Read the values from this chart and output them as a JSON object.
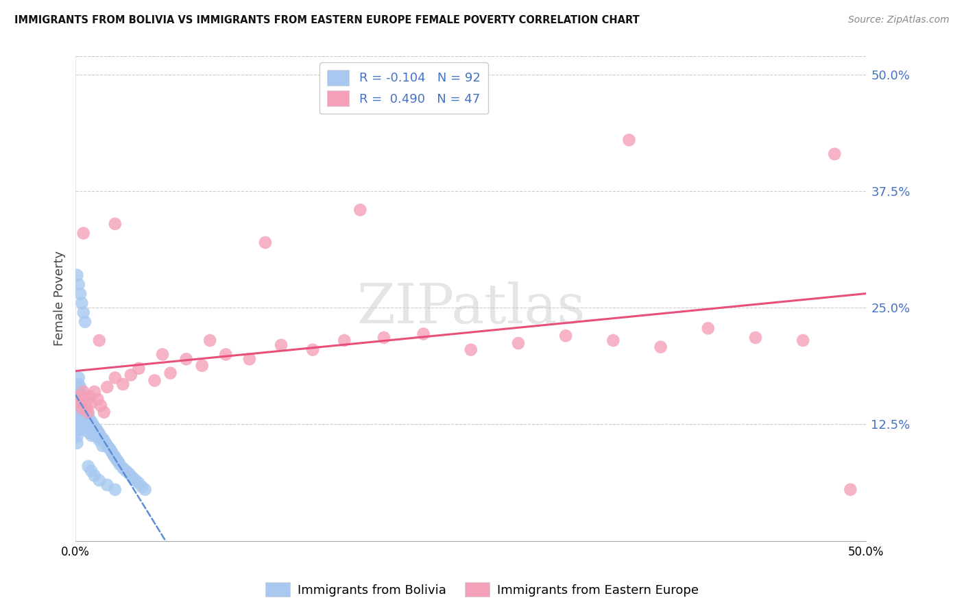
{
  "title": "IMMIGRANTS FROM BOLIVIA VS IMMIGRANTS FROM EASTERN EUROPE FEMALE POVERTY CORRELATION CHART",
  "source": "Source: ZipAtlas.com",
  "ylabel": "Female Poverty",
  "ytick_values": [
    0.125,
    0.25,
    0.375,
    0.5
  ],
  "ytick_labels": [
    "12.5%",
    "25.0%",
    "37.5%",
    "50.0%"
  ],
  "xlim": [
    0.0,
    0.5
  ],
  "ylim": [
    0.0,
    0.52
  ],
  "bolivia_color": "#A8C8F0",
  "eastern_europe_color": "#F4A0B8",
  "bolivia_line_color": "#5B8DD9",
  "eastern_europe_line_color": "#E8507A",
  "bolivia_R": -0.104,
  "bolivia_N": 92,
  "eastern_europe_R": 0.49,
  "eastern_europe_N": 47,
  "legend_label_bolivia": "Immigrants from Bolivia",
  "legend_label_eastern_europe": "Immigrants from Eastern Europe",
  "background_color": "#FFFFFF",
  "grid_color": "#CCCCCC",
  "watermark_text": "ZIPatlas",
  "legend_R_N_color": "#4472C4",
  "bolivia_x": [
    0.001,
    0.001,
    0.001,
    0.001,
    0.001,
    0.001,
    0.001,
    0.002,
    0.002,
    0.002,
    0.002,
    0.002,
    0.002,
    0.002,
    0.002,
    0.003,
    0.003,
    0.003,
    0.003,
    0.003,
    0.003,
    0.003,
    0.004,
    0.004,
    0.004,
    0.004,
    0.004,
    0.005,
    0.005,
    0.005,
    0.005,
    0.005,
    0.006,
    0.006,
    0.006,
    0.006,
    0.007,
    0.007,
    0.007,
    0.007,
    0.008,
    0.008,
    0.008,
    0.009,
    0.009,
    0.009,
    0.01,
    0.01,
    0.01,
    0.011,
    0.011,
    0.012,
    0.012,
    0.013,
    0.013,
    0.014,
    0.015,
    0.015,
    0.016,
    0.017,
    0.017,
    0.018,
    0.019,
    0.02,
    0.021,
    0.022,
    0.023,
    0.024,
    0.025,
    0.026,
    0.027,
    0.028,
    0.03,
    0.032,
    0.034,
    0.036,
    0.038,
    0.04,
    0.042,
    0.044,
    0.001,
    0.002,
    0.003,
    0.004,
    0.005,
    0.006,
    0.008,
    0.01,
    0.012,
    0.015,
    0.02,
    0.025
  ],
  "bolivia_y": [
    0.155,
    0.14,
    0.13,
    0.125,
    0.118,
    0.112,
    0.105,
    0.175,
    0.168,
    0.16,
    0.15,
    0.142,
    0.135,
    0.128,
    0.12,
    0.165,
    0.158,
    0.15,
    0.143,
    0.136,
    0.128,
    0.12,
    0.155,
    0.148,
    0.14,
    0.132,
    0.125,
    0.15,
    0.143,
    0.135,
    0.127,
    0.12,
    0.145,
    0.138,
    0.13,
    0.122,
    0.14,
    0.133,
    0.125,
    0.118,
    0.135,
    0.128,
    0.12,
    0.13,
    0.123,
    0.116,
    0.128,
    0.12,
    0.113,
    0.125,
    0.118,
    0.122,
    0.115,
    0.12,
    0.112,
    0.118,
    0.115,
    0.108,
    0.112,
    0.11,
    0.102,
    0.108,
    0.105,
    0.102,
    0.1,
    0.098,
    0.095,
    0.092,
    0.09,
    0.087,
    0.085,
    0.082,
    0.078,
    0.075,
    0.072,
    0.068,
    0.065,
    0.062,
    0.058,
    0.055,
    0.285,
    0.275,
    0.265,
    0.255,
    0.245,
    0.235,
    0.08,
    0.075,
    0.07,
    0.065,
    0.06,
    0.055
  ],
  "eastern_europe_x": [
    0.002,
    0.003,
    0.004,
    0.005,
    0.006,
    0.007,
    0.008,
    0.009,
    0.01,
    0.012,
    0.014,
    0.016,
    0.018,
    0.02,
    0.025,
    0.03,
    0.035,
    0.04,
    0.05,
    0.06,
    0.07,
    0.08,
    0.095,
    0.11,
    0.13,
    0.15,
    0.17,
    0.195,
    0.22,
    0.25,
    0.28,
    0.31,
    0.34,
    0.37,
    0.4,
    0.43,
    0.46,
    0.49,
    0.005,
    0.015,
    0.025,
    0.055,
    0.085,
    0.12,
    0.18,
    0.35,
    0.48
  ],
  "eastern_europe_y": [
    0.155,
    0.148,
    0.142,
    0.16,
    0.15,
    0.143,
    0.138,
    0.155,
    0.148,
    0.16,
    0.152,
    0.145,
    0.138,
    0.165,
    0.175,
    0.168,
    0.178,
    0.185,
    0.172,
    0.18,
    0.195,
    0.188,
    0.2,
    0.195,
    0.21,
    0.205,
    0.215,
    0.218,
    0.222,
    0.205,
    0.212,
    0.22,
    0.215,
    0.208,
    0.228,
    0.218,
    0.215,
    0.055,
    0.33,
    0.215,
    0.34,
    0.2,
    0.215,
    0.32,
    0.355,
    0.43,
    0.415
  ]
}
